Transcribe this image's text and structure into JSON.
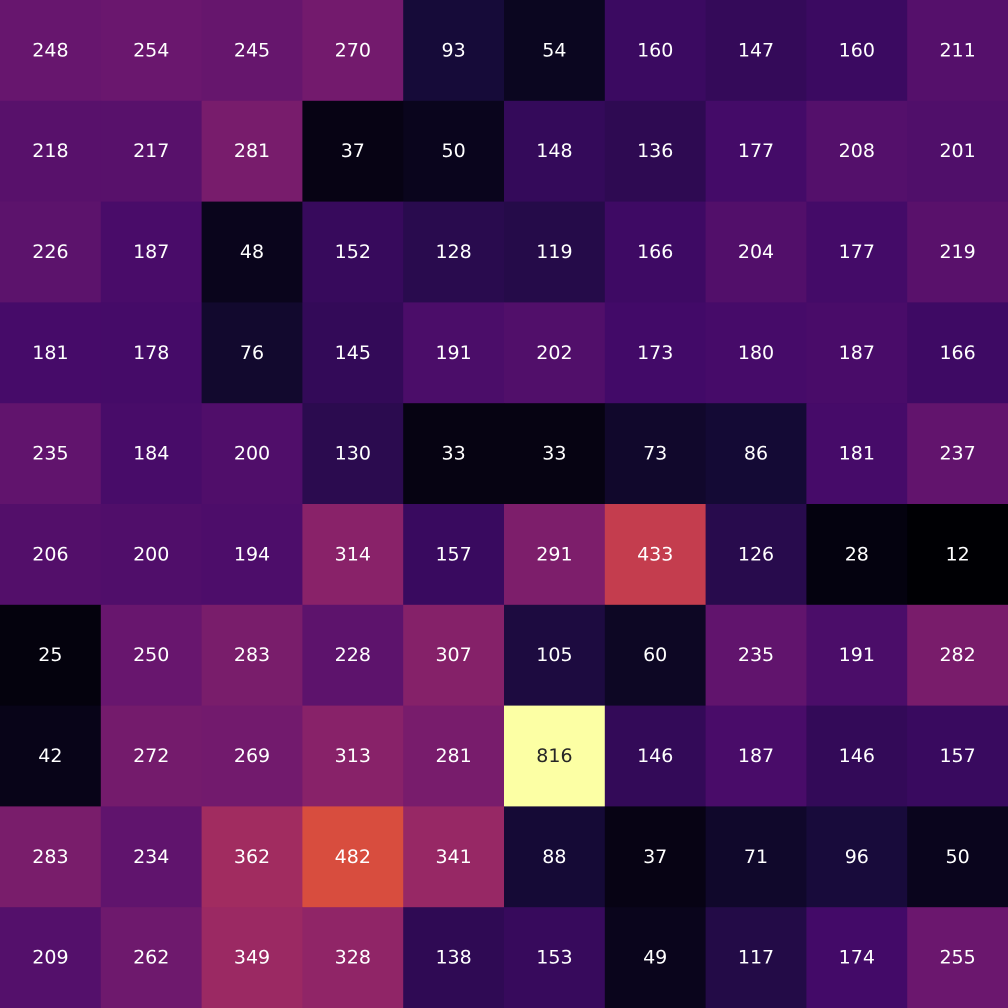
{
  "chart_data": {
    "type": "heatmap",
    "title": "",
    "xlabel": "",
    "ylabel": "",
    "rows": 10,
    "cols": 10,
    "colormap": "inferno",
    "value_range": [
      12,
      816
    ],
    "annotations": true,
    "colorbar": false,
    "values": [
      [
        248,
        254,
        245,
        270,
        93,
        54,
        160,
        147,
        160,
        211
      ],
      [
        218,
        217,
        281,
        37,
        50,
        148,
        136,
        177,
        208,
        201
      ],
      [
        226,
        187,
        48,
        152,
        128,
        119,
        166,
        204,
        177,
        219
      ],
      [
        181,
        178,
        76,
        145,
        191,
        202,
        173,
        180,
        187,
        166
      ],
      [
        235,
        184,
        200,
        130,
        33,
        33,
        73,
        86,
        181,
        237
      ],
      [
        206,
        200,
        194,
        314,
        157,
        291,
        433,
        126,
        28,
        12
      ],
      [
        25,
        250,
        283,
        228,
        307,
        105,
        60,
        235,
        191,
        282
      ],
      [
        42,
        272,
        269,
        313,
        281,
        816,
        146,
        187,
        146,
        157
      ],
      [
        283,
        234,
        362,
        482,
        341,
        88,
        37,
        71,
        96,
        50
      ],
      [
        209,
        262,
        349,
        328,
        138,
        153,
        49,
        117,
        174,
        255
      ]
    ]
  }
}
